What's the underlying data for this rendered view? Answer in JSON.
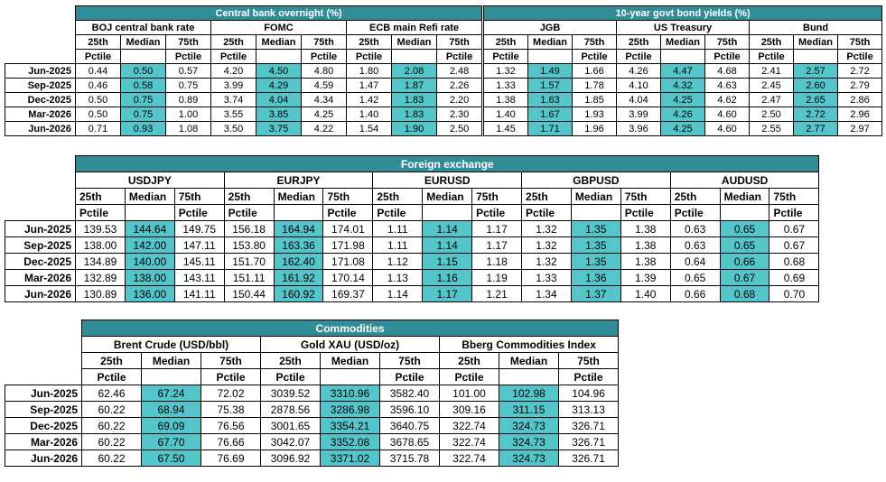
{
  "rates": {
    "central_title": "Central bank overnight (%)",
    "bond_title": "10-year govt bond yields (%)",
    "groups": [
      "BOJ central bank rate",
      "FOMC",
      "ECB main Refi rate",
      "JGB",
      "US Treasury",
      "Bund"
    ],
    "sub_top": [
      "25th",
      "Median",
      "75th"
    ],
    "sub_bottom": [
      "Pctile",
      "",
      "Pctile"
    ],
    "rows": [
      {
        "label": "Jun-2025",
        "vals": [
          "0.44",
          "0.50",
          "0.57",
          "4.20",
          "4.50",
          "4.80",
          "1.80",
          "2.08",
          "2.48",
          "1.32",
          "1.49",
          "1.66",
          "4.26",
          "4.47",
          "4.68",
          "2.41",
          "2.57",
          "2.72"
        ]
      },
      {
        "label": "Sep-2025",
        "vals": [
          "0.46",
          "0.58",
          "0.75",
          "3.99",
          "4.29",
          "4.59",
          "1.47",
          "1.87",
          "2.26",
          "1.33",
          "1.57",
          "1.78",
          "4.10",
          "4.32",
          "4.63",
          "2.45",
          "2.60",
          "2.79"
        ]
      },
      {
        "label": "Dec-2025",
        "vals": [
          "0.50",
          "0.75",
          "0.89",
          "3.74",
          "4.04",
          "4.34",
          "1.42",
          "1.83",
          "2.20",
          "1.38",
          "1.63",
          "1.85",
          "4.04",
          "4.25",
          "4.62",
          "2.47",
          "2.65",
          "2.86"
        ]
      },
      {
        "label": "Mar-2026",
        "vals": [
          "0.50",
          "0.75",
          "1.00",
          "3.55",
          "3.85",
          "4.25",
          "1.40",
          "1.83",
          "2.30",
          "1.40",
          "1.67",
          "1.93",
          "3.99",
          "4.26",
          "4.60",
          "2.50",
          "2.72",
          "2.96"
        ]
      },
      {
        "label": "Jun-2026",
        "vals": [
          "0.71",
          "0.93",
          "1.08",
          "3.50",
          "3.75",
          "4.22",
          "1.54",
          "1.90",
          "2.50",
          "1.45",
          "1.71",
          "1.96",
          "3.96",
          "4.25",
          "4.60",
          "2.55",
          "2.77",
          "2.97"
        ]
      }
    ]
  },
  "fx": {
    "title": "Foreign exchange",
    "groups": [
      "USDJPY",
      "EURJPY",
      "EURUSD",
      "GBPUSD",
      "AUDUSD"
    ],
    "sub_top": [
      "25th",
      "Median",
      "75th"
    ],
    "sub_bottom": [
      "Pctile",
      "",
      "Pctile"
    ],
    "rows": [
      {
        "label": "Jun-2025",
        "vals": [
          "139.53",
          "144.64",
          "149.75",
          "156.18",
          "164.94",
          "174.01",
          "1.11",
          "1.14",
          "1.17",
          "1.32",
          "1.35",
          "1.38",
          "0.63",
          "0.65",
          "0.67"
        ]
      },
      {
        "label": "Sep-2025",
        "vals": [
          "138.00",
          "142.00",
          "147.11",
          "153.80",
          "163.36",
          "171.98",
          "1.11",
          "1.14",
          "1.17",
          "1.32",
          "1.35",
          "1.38",
          "0.63",
          "0.65",
          "0.67"
        ]
      },
      {
        "label": "Dec-2025",
        "vals": [
          "134.89",
          "140.00",
          "145.11",
          "151.70",
          "162.40",
          "171.08",
          "1.12",
          "1.15",
          "1.18",
          "1.32",
          "1.35",
          "1.38",
          "0.64",
          "0.66",
          "0.68"
        ]
      },
      {
        "label": "Mar-2026",
        "vals": [
          "132.89",
          "138.00",
          "143.11",
          "151.11",
          "161.92",
          "170.14",
          "1.13",
          "1.16",
          "1.19",
          "1.33",
          "1.36",
          "1.39",
          "0.65",
          "0.67",
          "0.69"
        ]
      },
      {
        "label": "Jun-2026",
        "vals": [
          "130.89",
          "136.00",
          "141.11",
          "150.44",
          "160.92",
          "169.37",
          "1.14",
          "1.17",
          "1.21",
          "1.34",
          "1.37",
          "1.40",
          "0.66",
          "0.68",
          "0.70"
        ]
      }
    ]
  },
  "commodities": {
    "title": "Commodities",
    "groups": [
      "Brent Crude (USD/bbl)",
      "Gold XAU (USD/oz)",
      "Bberg Commodities Index"
    ],
    "sub_top": [
      "25th",
      "Median",
      "75th"
    ],
    "sub_bottom": [
      "Pctile",
      "",
      "Pctile"
    ],
    "rows": [
      {
        "label": "Jun-2025",
        "vals": [
          "62.46",
          "67.24",
          "72.02",
          "3039.52",
          "3310.96",
          "3582.40",
          "101.00",
          "102.98",
          "104.96"
        ]
      },
      {
        "label": "Sep-2025",
        "vals": [
          "60.22",
          "68.94",
          "75.38",
          "2878.56",
          "3286.98",
          "3596.10",
          "309.16",
          "311.15",
          "313.13"
        ]
      },
      {
        "label": "Dec-2025",
        "vals": [
          "60.22",
          "69.09",
          "76.56",
          "3001.65",
          "3354.21",
          "3640.75",
          "322.74",
          "324.73",
          "326.71"
        ]
      },
      {
        "label": "Mar-2026",
        "vals": [
          "60.22",
          "67.70",
          "76.66",
          "3042.07",
          "3352.08",
          "3678.65",
          "322.74",
          "324.73",
          "326.71"
        ]
      },
      {
        "label": "Jun-2026",
        "vals": [
          "60.22",
          "67.50",
          "76.69",
          "3096.92",
          "3371.02",
          "3715.78",
          "322.74",
          "324.73",
          "326.71"
        ]
      }
    ]
  }
}
